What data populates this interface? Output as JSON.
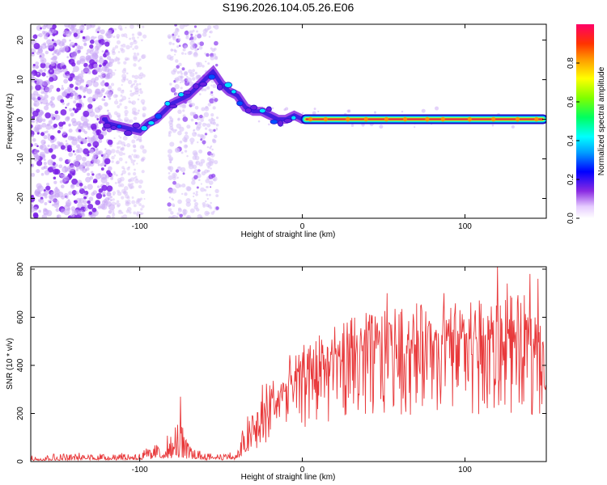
{
  "title": "S196.2026.104.05.26.E06",
  "colors": {
    "signal": "#e8383a",
    "background": "#ffffff",
    "axis": "#000000",
    "spectral_ridge": "#e0383a",
    "spectral_scatter": "#7a28f0"
  },
  "chart_data": [
    {
      "type": "heatmap",
      "name": "spectrogram",
      "xlabel": "Height of straight line (km)",
      "ylabel": "Frequency (Hz)",
      "xlim": [
        -167,
        150
      ],
      "ylim": [
        -25,
        24
      ],
      "xticks": [
        -100,
        0,
        100
      ],
      "xtick_labels": [
        "-100",
        "0",
        "100"
      ],
      "yticks": [
        -20,
        -10,
        0,
        10,
        20
      ],
      "ytick_labels": [
        "-20",
        "-10",
        "0",
        "10",
        "20"
      ],
      "ridge": {
        "description_points_x": [
          -120,
          -110,
          -100,
          -95,
          -90,
          -85,
          -80,
          -75,
          -70,
          -65,
          -60,
          -55,
          -50,
          -45,
          -40,
          -35,
          -30,
          -25,
          -20,
          -15,
          -10,
          -5,
          0,
          10,
          50,
          100,
          149
        ],
        "description_points_y": [
          -1,
          -2,
          -3,
          -1,
          0,
          2,
          4,
          5,
          6,
          8,
          10,
          12,
          9,
          7,
          6,
          3,
          2,
          2,
          1,
          0,
          0,
          1,
          0,
          0,
          0,
          0,
          0
        ]
      },
      "colorbar": {
        "label": "Normalized spectral amplitude",
        "range": [
          0.0,
          1.0
        ],
        "ticks": [
          0.0,
          0.2,
          0.4,
          0.6,
          0.8
        ],
        "tick_labels": [
          "0.0",
          "0.2",
          "0.4",
          "0.6",
          "0.8"
        ]
      }
    },
    {
      "type": "line",
      "name": "snr",
      "xlabel": "Height of straight line (km)",
      "ylabel": "SNR (10 * v/v)",
      "xlim": [
        -167,
        150
      ],
      "ylim": [
        0,
        810
      ],
      "xticks": [
        -100,
        0,
        100
      ],
      "xtick_labels": [
        "-100",
        "0",
        "100"
      ],
      "yticks": [
        0,
        200,
        400,
        600,
        800
      ],
      "ytick_labels": [
        "0",
        "200",
        "400",
        "600",
        "800"
      ],
      "envelope_x": [
        -167,
        -100,
        -90,
        -80,
        -75,
        -70,
        -60,
        -40,
        -35,
        -25,
        -15,
        -5,
        5,
        20,
        40,
        60,
        80,
        100,
        120,
        140,
        150
      ],
      "envelope_base": [
        10,
        15,
        25,
        35,
        40,
        25,
        15,
        15,
        60,
        170,
        250,
        310,
        360,
        420,
        460,
        480,
        490,
        490,
        480,
        480,
        470
      ],
      "envelope_peak": [
        30,
        45,
        80,
        120,
        200,
        80,
        40,
        40,
        190,
        330,
        400,
        460,
        520,
        580,
        620,
        660,
        660,
        670,
        700,
        690,
        690
      ],
      "spikes": [
        {
          "x": -75,
          "y": 270
        },
        {
          "x": 20,
          "y": 560
        },
        {
          "x": 52,
          "y": 700
        },
        {
          "x": 87,
          "y": 700
        },
        {
          "x": 120,
          "y": 810
        },
        {
          "x": 126,
          "y": 740
        },
        {
          "x": 140,
          "y": 780
        },
        {
          "x": 145,
          "y": 760
        },
        {
          "x": 60,
          "y": 380
        },
        {
          "x": 115,
          "y": 280
        },
        {
          "x": 136,
          "y": 250
        }
      ],
      "series": [
        {
          "name": "SNR",
          "color": "#e8383a"
        }
      ]
    }
  ]
}
